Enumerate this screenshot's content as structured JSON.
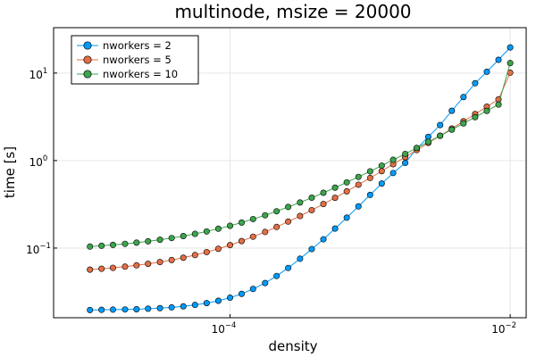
{
  "chart_data": {
    "type": "line",
    "title": "multinode, msize = 20000",
    "xlabel": "density",
    "ylabel": "time [s]",
    "xscale": "log",
    "yscale": "log",
    "xlim": [
      5.5e-06,
      0.013
    ],
    "ylim": [
      0.016,
      33
    ],
    "grid": true,
    "legend_position": "top-left",
    "x_ticks": [
      {
        "value": 0.0001,
        "base": "10",
        "exp": "−4"
      },
      {
        "value": 0.01,
        "base": "10",
        "exp": "−2"
      }
    ],
    "y_ticks": [
      {
        "value": 0.1,
        "base": "10",
        "exp": "−1"
      },
      {
        "value": 1,
        "base": "10",
        "exp": "0"
      },
      {
        "value": 10,
        "base": "10",
        "exp": "1"
      }
    ],
    "x": [
      1e-05,
      1.21e-05,
      1.46e-05,
      1.78e-05,
      2.15e-05,
      2.6e-05,
      3.16e-05,
      3.83e-05,
      4.64e-05,
      5.62e-05,
      6.81e-05,
      8.25e-05,
      0.0001,
      0.000121,
      0.000146,
      0.000178,
      0.000215,
      0.00026,
      0.000316,
      0.000383,
      0.000464,
      0.000562,
      0.000681,
      0.000825,
      0.001,
      0.00121,
      0.00146,
      0.00178,
      0.00215,
      0.0026,
      0.00316,
      0.00383,
      0.00464,
      0.00562,
      0.00681,
      0.00825,
      0.01
    ],
    "series": [
      {
        "name": "nworkers = 2",
        "color": "#009af9",
        "values": [
          0.0196,
          0.0197,
          0.0198,
          0.0199,
          0.02,
          0.0203,
          0.0206,
          0.021,
          0.0216,
          0.0224,
          0.0235,
          0.025,
          0.0271,
          0.03,
          0.0341,
          0.0399,
          0.048,
          0.0593,
          0.0755,
          0.0974,
          0.1261,
          0.1669,
          0.2225,
          0.2993,
          0.405,
          0.547,
          0.721,
          0.94,
          1.365,
          1.864,
          2.547,
          3.705,
          5.316,
          7.645,
          10.36,
          14.17,
          19.64
        ]
      },
      {
        "name": "nworkers = 5",
        "color": "#e26f46",
        "values": [
          0.0567,
          0.058,
          0.0595,
          0.0613,
          0.0635,
          0.0661,
          0.0692,
          0.073,
          0.0776,
          0.0832,
          0.09,
          0.0982,
          0.1081,
          0.1202,
          0.1349,
          0.1527,
          0.1743,
          0.2006,
          0.2325,
          0.2713,
          0.3184,
          0.3756,
          0.4452,
          0.5297,
          0.6323,
          0.7571,
          0.9087,
          1.093,
          1.317,
          1.589,
          1.92,
          2.322,
          2.81,
          3.404,
          4.126,
          5.003,
          10.1
        ]
      },
      {
        "name": "nworkers = 10",
        "color": "#3da44d",
        "values": [
          0.104,
          0.1062,
          0.1088,
          0.1118,
          0.1154,
          0.1196,
          0.1245,
          0.1303,
          0.1372,
          0.1453,
          0.1549,
          0.1663,
          0.1798,
          0.1957,
          0.2146,
          0.237,
          0.2635,
          0.2949,
          0.3321,
          0.3762,
          0.4284,
          0.4903,
          0.5636,
          0.6505,
          0.7534,
          0.8754,
          1.02,
          1.191,
          1.394,
          1.635,
          1.92,
          2.258,
          2.659,
          3.134,
          3.697,
          4.364,
          13.0
        ]
      }
    ]
  }
}
